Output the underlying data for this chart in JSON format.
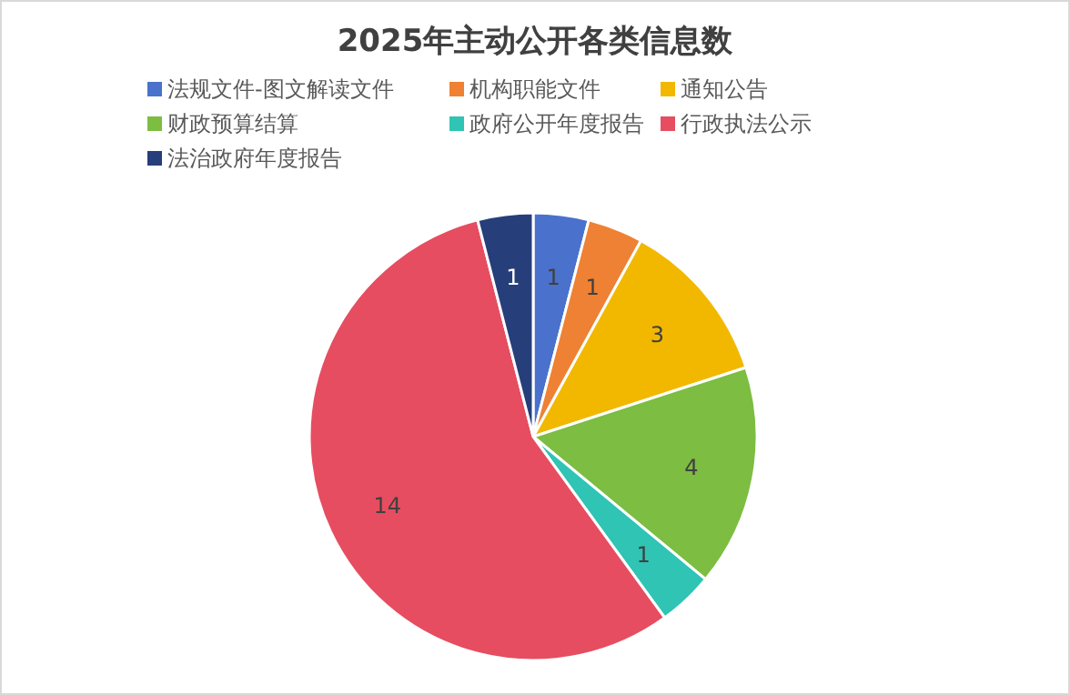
{
  "chart_data": {
    "type": "pie",
    "title": "2025年主动公开各类信息数",
    "categories": [
      "法规文件-图文解读文件",
      "机构职能文件",
      "通知公告",
      "财政预算结算",
      "政府公开年度报告",
      "行政执法公示",
      "法治政府年度报告"
    ],
    "values": [
      1,
      1,
      3,
      4,
      1,
      14,
      1
    ],
    "colors": [
      "#4a72cc",
      "#ee8133",
      "#f2b800",
      "#7cbd42",
      "#2fc4b4",
      "#e64d60",
      "#263f7b"
    ],
    "data_labels": true,
    "legend": "top"
  }
}
